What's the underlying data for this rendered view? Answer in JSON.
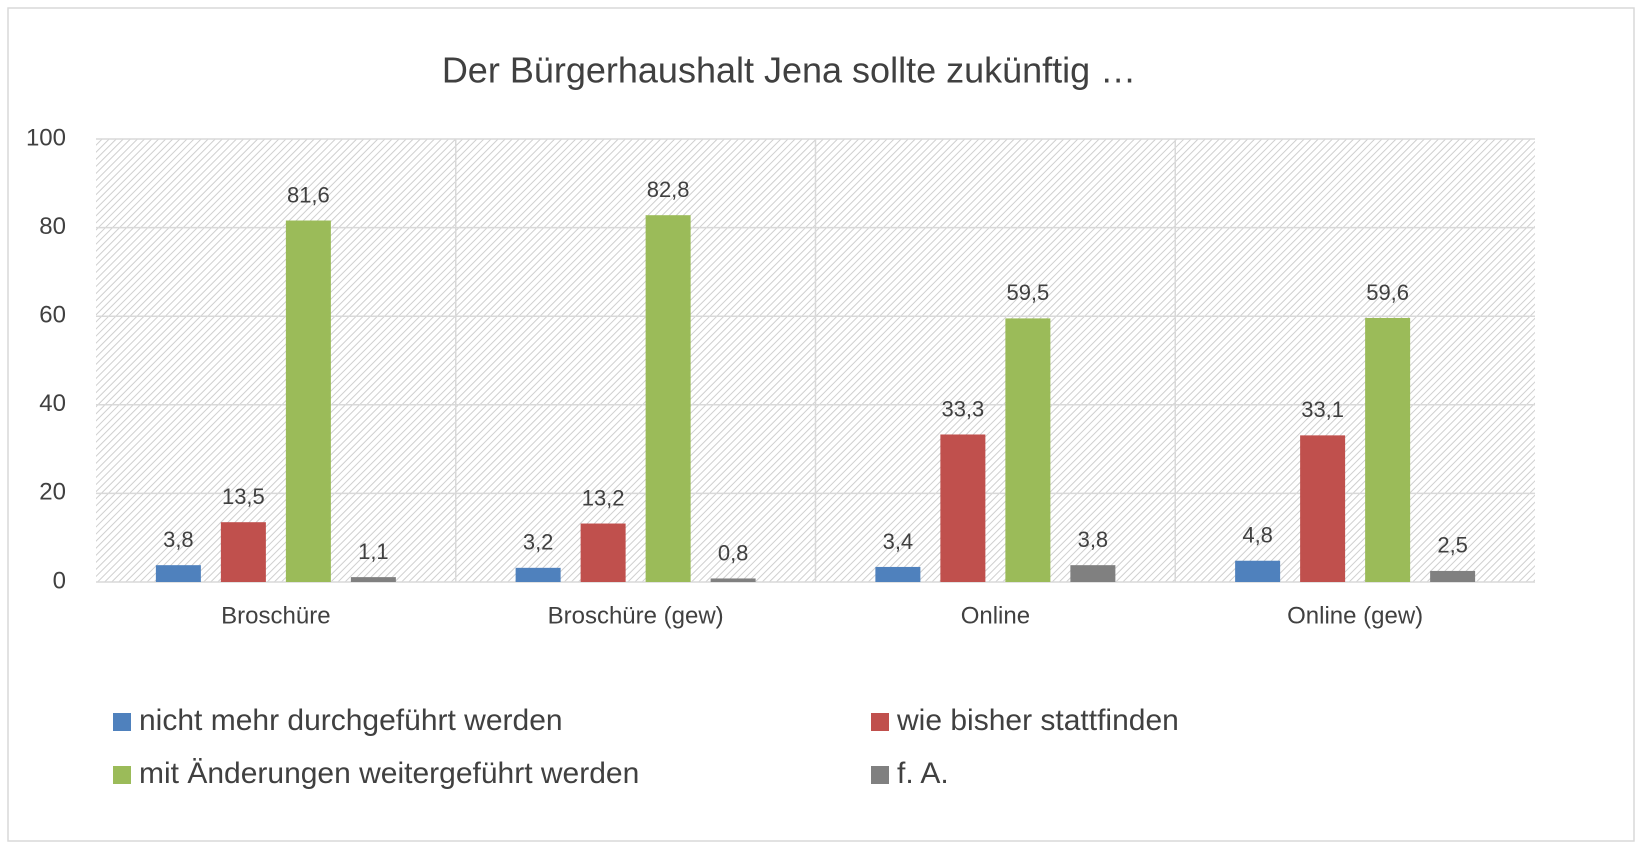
{
  "chart_data": {
    "type": "bar",
    "title": "Der Bürgerhaushalt Jena sollte zukünftig …",
    "categories": [
      "Broschüre",
      "Broschüre (gew)",
      "Online",
      "Online (gew)"
    ],
    "series": [
      {
        "name": "nicht mehr durchgeführt werden",
        "color": "#4f81bd",
        "values": [
          3.8,
          3.2,
          3.4,
          4.8
        ],
        "value_labels": [
          "3,8",
          "3,2",
          "3,4",
          "4,8"
        ]
      },
      {
        "name": "wie bisher stattfinden",
        "color": "#c0504d",
        "values": [
          13.5,
          13.2,
          33.3,
          33.1
        ],
        "value_labels": [
          "13,5",
          "13,2",
          "33,3",
          "33,1"
        ]
      },
      {
        "name": "mit Änderungen weitergeführt werden",
        "color": "#9bbb59",
        "values": [
          81.6,
          82.8,
          59.5,
          59.6
        ],
        "value_labels": [
          "81,6",
          "82,8",
          "59,5",
          "59,6"
        ]
      },
      {
        "name": "f. A.",
        "color": "#808080",
        "values": [
          1.1,
          0.8,
          3.8,
          2.5
        ],
        "value_labels": [
          "1,1",
          "0,8",
          "3,8",
          "2,5"
        ]
      }
    ],
    "ylim": [
      0,
      100
    ],
    "yticks": [
      0,
      20,
      40,
      60,
      80,
      100
    ],
    "grid": true,
    "legend": "bottom"
  }
}
